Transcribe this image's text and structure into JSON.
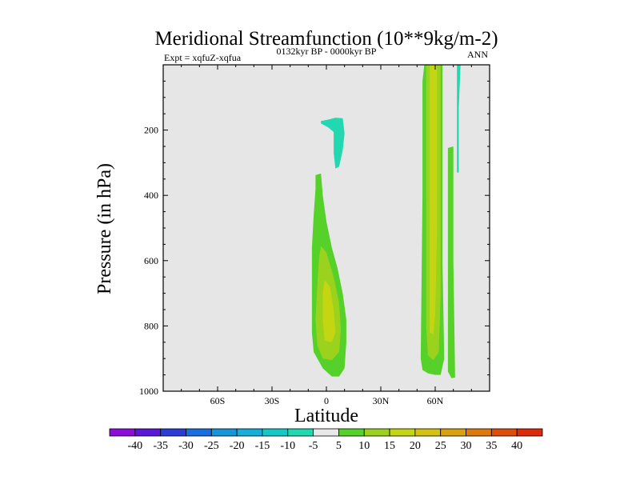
{
  "chart_data": {
    "type": "heatmap",
    "title": "Meridional Streamfunction (10**9kg/m-2)",
    "subtitle_left": "Expt = xqfuZ-xqfua",
    "subtitle_center": "0132kyr BP - 0000kyr BP",
    "subtitle_right": "ANN",
    "xlabel": "Latitude",
    "ylabel": "Pressure (in hPa)",
    "xlim": [
      -90,
      90
    ],
    "ylim": [
      1000,
      0
    ],
    "x_ticks": [
      {
        "value": -60,
        "label": "60S"
      },
      {
        "value": -30,
        "label": "30S"
      },
      {
        "value": 0,
        "label": "0"
      },
      {
        "value": 30,
        "label": "30N"
      },
      {
        "value": 60,
        "label": "60N"
      }
    ],
    "y_ticks": [
      {
        "value": 200,
        "label": "200"
      },
      {
        "value": 400,
        "label": "400"
      },
      {
        "value": 600,
        "label": "600"
      },
      {
        "value": 800,
        "label": "800"
      },
      {
        "value": 1000,
        "label": "1000"
      }
    ],
    "background_color": "#e6e6e6",
    "colorbar": {
      "levels": [
        "-40",
        "-35",
        "-30",
        "-25",
        "-20",
        "-15",
        "-10",
        "-5",
        "5",
        "10",
        "15",
        "20",
        "25",
        "30",
        "35",
        "40"
      ],
      "colors": [
        "#8c0fd9",
        "#5a16d9",
        "#2b3bd6",
        "#1a6fe0",
        "#1496d9",
        "#14aed6",
        "#14c8c8",
        "#22d8b0",
        "#e8e8e8",
        "#55d12a",
        "#9ad21e",
        "#c4d612",
        "#d6c010",
        "#d9a00f",
        "#dc7a0d",
        "#e04e0b",
        "#dd2a0a"
      ]
    },
    "contours": [
      {
        "name": "equatorial-upper-negative",
        "level_color": "#22d8b0",
        "points": [
          [
            -3,
            172
          ],
          [
            1,
            168
          ],
          [
            5,
            162
          ],
          [
            9,
            164
          ],
          [
            10,
            210
          ],
          [
            9,
            262
          ],
          [
            7,
            312
          ],
          [
            5,
            318
          ],
          [
            4,
            270
          ],
          [
            4,
            232
          ],
          [
            4,
            206
          ],
          [
            1,
            192
          ],
          [
            -3,
            180
          ]
        ]
      },
      {
        "name": "equatorial-lower-positive-outer",
        "level_color": "#55d12a",
        "points": [
          [
            -6,
            338
          ],
          [
            -3,
            333
          ],
          [
            -2,
            400
          ],
          [
            0,
            480
          ],
          [
            3,
            560
          ],
          [
            6,
            620
          ],
          [
            9,
            700
          ],
          [
            11,
            780
          ],
          [
            11,
            850
          ],
          [
            10,
            930
          ],
          [
            7,
            955
          ],
          [
            3,
            955
          ],
          [
            -2,
            930
          ],
          [
            -7,
            880
          ],
          [
            -8,
            820
          ],
          [
            -8,
            740
          ],
          [
            -8,
            640
          ],
          [
            -8,
            560
          ],
          [
            -7,
            460
          ],
          [
            -6,
            380
          ]
        ]
      },
      {
        "name": "equatorial-lower-positive-inner",
        "level_color": "#9ad21e",
        "points": [
          [
            -3,
            555
          ],
          [
            0,
            575
          ],
          [
            4,
            650
          ],
          [
            7,
            730
          ],
          [
            8,
            810
          ],
          [
            7,
            880
          ],
          [
            3,
            905
          ],
          [
            -2,
            900
          ],
          [
            -5,
            860
          ],
          [
            -6,
            780
          ],
          [
            -5,
            670
          ],
          [
            -4,
            590
          ]
        ]
      },
      {
        "name": "equatorial-lower-positive-core",
        "level_color": "#c4d612",
        "points": [
          [
            -1,
            660
          ],
          [
            2,
            680
          ],
          [
            4,
            750
          ],
          [
            5,
            820
          ],
          [
            3,
            850
          ],
          [
            -1,
            845
          ],
          [
            -2,
            780
          ],
          [
            -2,
            700
          ]
        ]
      },
      {
        "name": "nh-jet-positive-outer",
        "level_color": "#55d12a",
        "points": [
          [
            54,
            0
          ],
          [
            64,
            0
          ],
          [
            64,
            600
          ],
          [
            65,
            900
          ],
          [
            63,
            950
          ],
          [
            60,
            950
          ],
          [
            56,
            945
          ],
          [
            53,
            935
          ],
          [
            52,
            900
          ],
          [
            53,
            400
          ],
          [
            53,
            50
          ]
        ]
      },
      {
        "name": "nh-jet-positive-inner",
        "level_color": "#9ad21e",
        "points": [
          [
            55,
            0
          ],
          [
            63,
            0
          ],
          [
            63,
            700
          ],
          [
            62,
            880
          ],
          [
            59,
            905
          ],
          [
            56,
            890
          ],
          [
            55,
            800
          ],
          [
            55,
            200
          ]
        ]
      },
      {
        "name": "nh-jet-positive-core",
        "level_color": "#c4d612",
        "points": [
          [
            57,
            0
          ],
          [
            61,
            0
          ],
          [
            61,
            500
          ],
          [
            60,
            760
          ],
          [
            59,
            825
          ],
          [
            57,
            820
          ],
          [
            57,
            700
          ],
          [
            57,
            300
          ]
        ]
      },
      {
        "name": "nh-second-positive",
        "level_color": "#55d12a",
        "points": [
          [
            67,
            255
          ],
          [
            70,
            250
          ],
          [
            70,
            600
          ],
          [
            71,
            958
          ],
          [
            69,
            960
          ],
          [
            67,
            940
          ],
          [
            67,
            600
          ]
        ]
      },
      {
        "name": "nh-high-negative",
        "level_color": "#22d8b0",
        "points": [
          [
            72,
            0
          ],
          [
            74,
            0
          ],
          [
            73,
            130
          ],
          [
            73,
            330
          ],
          [
            72,
            330
          ],
          [
            72,
            150
          ]
        ]
      }
    ]
  }
}
